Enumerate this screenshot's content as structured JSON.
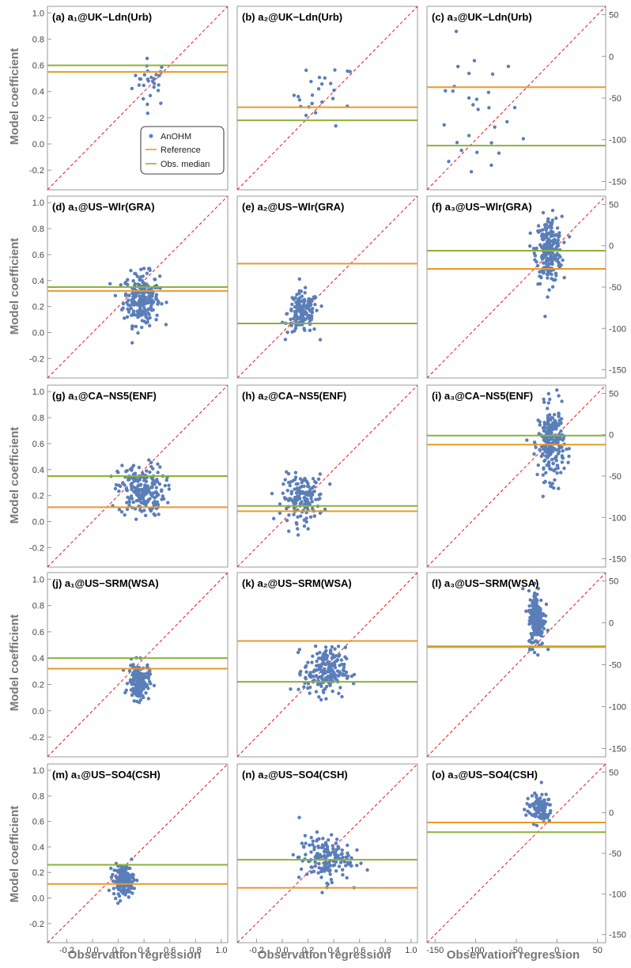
{
  "figure": {
    "xlabel": "Observation regression",
    "ylabel": "Model coefficient",
    "colors": {
      "points": "#5a7eb8",
      "reference": "#e89a2a",
      "median": "#8cb23a",
      "diagonal": "#e8131a",
      "frame": "#9a9a9a",
      "axis_text": "#777777"
    }
  },
  "legend": {
    "placement": "inside panel (a), lower-right",
    "entries": [
      "AnOHM",
      "Reference",
      "Obs. median"
    ]
  },
  "chart_data": [
    {
      "type": "scatter",
      "title": "(a) a₁@UK−Ldn(Urb)",
      "xlim": [
        -0.35,
        1.05
      ],
      "ylim": [
        -0.35,
        1.05
      ],
      "reference": 0.55,
      "median": 0.6,
      "cloud": {
        "n": 28,
        "cx": 0.45,
        "cy": 0.47,
        "sx": 0.07,
        "sy": 0.09
      }
    },
    {
      "type": "scatter",
      "title": "(b) a₂@UK−Ldn(Urb)",
      "xlim": [
        -0.35,
        1.05
      ],
      "ylim": [
        -0.35,
        1.05
      ],
      "reference": 0.28,
      "median": 0.18,
      "cloud": {
        "n": 25,
        "cx": 0.33,
        "cy": 0.38,
        "sx": 0.12,
        "sy": 0.12
      }
    },
    {
      "type": "scatter",
      "title": "(c) a₃@UK−Ldn(Urb)",
      "xlim": [
        -160,
        60
      ],
      "ylim": [
        -160,
        60
      ],
      "reference": -37,
      "median": -107,
      "cloud": {
        "n": 30,
        "cx": -105,
        "cy": -75,
        "sx": 30,
        "sy": 42
      }
    },
    {
      "type": "scatter",
      "title": "(d) a₁@US−Wlr(GRA)",
      "xlim": [
        -0.35,
        1.05
      ],
      "ylim": [
        -0.35,
        1.05
      ],
      "reference": 0.32,
      "median": 0.35,
      "cloud": {
        "n": 230,
        "cx": 0.38,
        "cy": 0.26,
        "sx": 0.07,
        "sy": 0.1
      }
    },
    {
      "type": "scatter",
      "title": "(e) a₂@US−Wlr(GRA)",
      "xlim": [
        -0.35,
        1.05
      ],
      "ylim": [
        -0.35,
        1.05
      ],
      "reference": 0.53,
      "median": 0.07,
      "cloud": {
        "n": 150,
        "cx": 0.16,
        "cy": 0.15,
        "sx": 0.06,
        "sy": 0.08
      }
    },
    {
      "type": "scatter",
      "title": "(f) a₃@US−Wlr(GRA)",
      "xlim": [
        -160,
        60
      ],
      "ylim": [
        -160,
        60
      ],
      "reference": -28,
      "median": -6,
      "cloud": {
        "n": 240,
        "cx": -10,
        "cy": -5,
        "sx": 8,
        "sy": 20
      }
    },
    {
      "type": "scatter",
      "title": "(g) a₁@CA−NS5(ENF)",
      "xlim": [
        -0.35,
        1.05
      ],
      "ylim": [
        -0.35,
        1.05
      ],
      "reference": 0.11,
      "median": 0.35,
      "cloud": {
        "n": 210,
        "cx": 0.38,
        "cy": 0.24,
        "sx": 0.09,
        "sy": 0.1
      }
    },
    {
      "type": "scatter",
      "title": "(h) a₂@CA−NS5(ENF)",
      "xlim": [
        -0.35,
        1.05
      ],
      "ylim": [
        -0.35,
        1.05
      ],
      "reference": 0.08,
      "median": 0.12,
      "cloud": {
        "n": 160,
        "cx": 0.16,
        "cy": 0.18,
        "sx": 0.08,
        "sy": 0.09
      }
    },
    {
      "type": "scatter",
      "title": "(i) a₃@CA−NS5(ENF)",
      "xlim": [
        -160,
        60
      ],
      "ylim": [
        -160,
        60
      ],
      "reference": -12,
      "median": -1,
      "cloud": {
        "n": 230,
        "cx": -7,
        "cy": -10,
        "sx": 8,
        "sy": 22
      }
    },
    {
      "type": "scatter",
      "title": "(j) a₁@US−SRM(WSA)",
      "xlim": [
        -0.35,
        1.05
      ],
      "ylim": [
        -0.35,
        1.05
      ],
      "reference": 0.32,
      "median": 0.4,
      "cloud": {
        "n": 170,
        "cx": 0.36,
        "cy": 0.22,
        "sx": 0.04,
        "sy": 0.07
      }
    },
    {
      "type": "scatter",
      "title": "(k) a₂@US−SRM(WSA)",
      "xlim": [
        -0.35,
        1.05
      ],
      "ylim": [
        -0.35,
        1.05
      ],
      "reference": 0.53,
      "median": 0.22,
      "cloud": {
        "n": 200,
        "cx": 0.33,
        "cy": 0.3,
        "sx": 0.08,
        "sy": 0.09
      }
    },
    {
      "type": "scatter",
      "title": "(l) a₃@US−SRM(WSA)",
      "xlim": [
        -160,
        60
      ],
      "ylim": [
        -160,
        60
      ],
      "reference": -29,
      "median": -28,
      "cloud": {
        "n": 200,
        "cx": -25,
        "cy": 5,
        "sx": 5,
        "sy": 17
      }
    },
    {
      "type": "scatter",
      "title": "(m) a₁@US−SO4(CSH)",
      "xlim": [
        -0.35,
        1.05
      ],
      "ylim": [
        -0.35,
        1.05
      ],
      "reference": 0.11,
      "median": 0.26,
      "cloud": {
        "n": 170,
        "cx": 0.24,
        "cy": 0.14,
        "sx": 0.04,
        "sy": 0.06
      }
    },
    {
      "type": "scatter",
      "title": "(n) a₂@US−SO4(CSH)",
      "xlim": [
        -0.35,
        1.05
      ],
      "ylim": [
        -0.35,
        1.05
      ],
      "reference": 0.08,
      "median": 0.3,
      "cloud": {
        "n": 160,
        "cx": 0.33,
        "cy": 0.31,
        "sx": 0.1,
        "sy": 0.09
      }
    },
    {
      "type": "scatter",
      "title": "(o) a₃@US−SO4(CSH)",
      "xlim": [
        -160,
        60
      ],
      "ylim": [
        -160,
        60
      ],
      "reference": -12,
      "median": -24,
      "cloud": {
        "n": 110,
        "cx": -22,
        "cy": 5,
        "sx": 8,
        "sy": 9
      }
    }
  ],
  "ticks": {
    "coef_y": [
      "1.0",
      "0.8",
      "0.6",
      "0.4",
      "0.2",
      "0.0",
      "-0.2"
    ],
    "coef_x": [
      "-0.2",
      "0.0",
      "0.2",
      "0.4",
      "0.6",
      "0.8",
      "1.0"
    ],
    "a3_y": [
      "50",
      "0",
      "-50",
      "-100",
      "-150"
    ],
    "a3_x": [
      "-150",
      "-100",
      "-50",
      "0",
      "50"
    ]
  }
}
